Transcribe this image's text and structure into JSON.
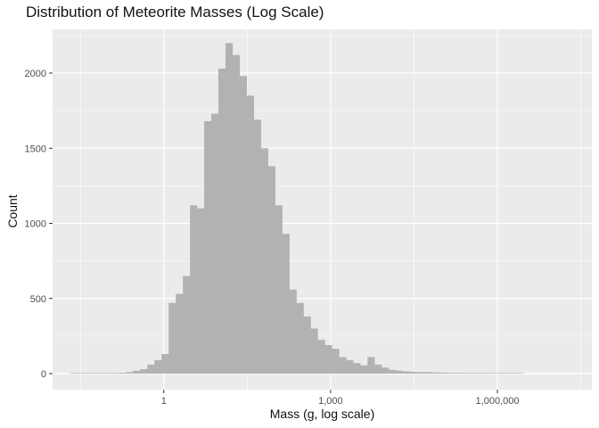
{
  "chart_data": {
    "type": "bar",
    "title": "Distribution of Meteorite Masses (Log Scale)",
    "xlabel": "Mass (g, log scale)",
    "ylabel": "Count",
    "x_scale": "log10",
    "xlim": [
      0.01,
      50000000
    ],
    "ylim": [
      0,
      2300
    ],
    "x_ticks": [
      {
        "value": 1,
        "label": "1"
      },
      {
        "value": 1000,
        "label": "1,000"
      },
      {
        "value": 1000000,
        "label": "1,000,000"
      }
    ],
    "y_ticks": [
      {
        "value": 0,
        "label": "0"
      },
      {
        "value": 500,
        "label": "500"
      },
      {
        "value": 1000,
        "label": "1000"
      },
      {
        "value": 1500,
        "label": "1500"
      },
      {
        "value": 2000,
        "label": "2000"
      }
    ],
    "grid": true,
    "bar_color": "#b2b2b2",
    "panel_color": "#ebebeb",
    "bins": {
      "log10_start": -1.7,
      "log10_width": 0.1277,
      "counts": [
        3,
        3,
        3,
        3,
        3,
        2,
        2,
        5,
        10,
        20,
        30,
        60,
        90,
        130,
        470,
        530,
        650,
        1120,
        1100,
        1680,
        1730,
        2030,
        2200,
        2120,
        1980,
        1850,
        1690,
        1500,
        1380,
        1120,
        930,
        560,
        470,
        380,
        300,
        225,
        190,
        165,
        110,
        90,
        70,
        55,
        110,
        60,
        40,
        25,
        20,
        15,
        12,
        10,
        10,
        8,
        6,
        5,
        5,
        4,
        4,
        4,
        4,
        3,
        3,
        3,
        3,
        3
      ]
    }
  }
}
